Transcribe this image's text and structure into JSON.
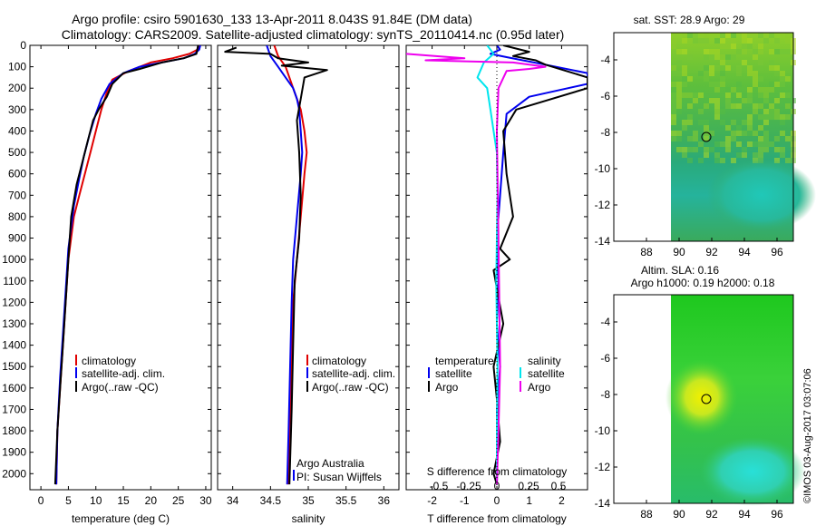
{
  "header": {
    "line1": "Argo profile: csiro 5901630_133 13-Apr-2011 8.043S 91.84E (DM data)",
    "line2": "Climatology: CARS2009. Satellite-adjusted climatology: synTS_20110414.nc (0.95d later)"
  },
  "colors": {
    "climatology": "#e00000",
    "satellite": "#0000ee",
    "argo": "#000000",
    "sat_salinity": "#00e5ee",
    "argo_salinity": "#ee00ee"
  },
  "chart_data": [
    {
      "type": "line",
      "name": "temperature",
      "xlabel": "temperature (deg C)",
      "xlim": [
        -2,
        31
      ],
      "ylim": [
        0,
        2075
      ],
      "yticks": [
        "0",
        "100",
        "200",
        "300",
        "400",
        "500",
        "600",
        "700",
        "800",
        "900",
        "1000",
        "1100",
        "1200",
        "1300",
        "1400",
        "1500",
        "1600",
        "1700",
        "1800",
        "1900",
        "2000"
      ],
      "xticks": [
        "0",
        "5",
        "10",
        "15",
        "20",
        "25",
        "30"
      ],
      "legend": {
        "climatology": "climatology",
        "satellite": "satellite-adj. clim.",
        "argo": "Argo(..raw -QC)"
      },
      "series": [
        {
          "name": "climatology",
          "color": "#e00000",
          "x": [
            29.0,
            28.5,
            27,
            24,
            20,
            16,
            13,
            12,
            11,
            10,
            9,
            8,
            7,
            6,
            5,
            4.5,
            4,
            3.5,
            3.0,
            2.8
          ],
          "y": [
            0,
            20,
            40,
            60,
            80,
            120,
            160,
            220,
            300,
            400,
            500,
            600,
            700,
            800,
            1000,
            1200,
            1400,
            1600,
            1800,
            2050
          ]
        },
        {
          "name": "satellite",
          "color": "#0000ee",
          "x": [
            29.0,
            28.8,
            28.0,
            26,
            22,
            18,
            15,
            12.5,
            11,
            10,
            8.8,
            7.8,
            7,
            6,
            5,
            4.5,
            4,
            3.5,
            3.0,
            2.8
          ],
          "y": [
            0,
            20,
            40,
            60,
            80,
            100,
            130,
            180,
            250,
            320,
            420,
            520,
            620,
            750,
            950,
            1150,
            1350,
            1550,
            1800,
            2050
          ]
        },
        {
          "name": "argo",
          "color": "#000000",
          "x": [
            28.6,
            28.3,
            26,
            22,
            18,
            15,
            13,
            12,
            10.5,
            9.5,
            8.5,
            7.5,
            6.5,
            5.5,
            5,
            4.5,
            4,
            3.5,
            3.0,
            2.6
          ],
          "y": [
            0,
            40,
            60,
            80,
            110,
            130,
            180,
            240,
            300,
            350,
            450,
            550,
            650,
            800,
            1000,
            1200,
            1400,
            1600,
            1800,
            2050
          ]
        }
      ]
    },
    {
      "type": "line",
      "name": "salinity",
      "xlabel": "salinity",
      "xlim": [
        33.8,
        36.2
      ],
      "ylim": [
        0,
        2075
      ],
      "xticks": [
        "34",
        "34.5",
        "35",
        "35.5",
        "36"
      ],
      "legend": {
        "climatology": "climatology",
        "satellite": "satellite-adj. clim.",
        "argo": "Argo(..raw -QC)"
      },
      "caption1": "Argo Australia",
      "caption2": "PI: Susan Wijffels",
      "series": [
        {
          "name": "climatology",
          "color": "#e00000",
          "x": [
            34.55,
            34.6,
            34.7,
            34.75,
            34.8,
            34.85,
            34.9,
            34.95,
            34.98,
            34.95,
            34.9,
            34.85,
            34.8,
            34.78,
            34.75,
            34.73
          ],
          "y": [
            0,
            50,
            100,
            150,
            200,
            250,
            300,
            400,
            500,
            600,
            800,
            1000,
            1200,
            1500,
            1800,
            2050
          ]
        },
        {
          "name": "satellite",
          "color": "#0000ee",
          "x": [
            34.45,
            34.5,
            34.6,
            34.7,
            34.8,
            34.85,
            34.88,
            34.9,
            34.92,
            34.9,
            34.85,
            34.8,
            34.78,
            34.76,
            34.74,
            34.72
          ],
          "y": [
            0,
            50,
            100,
            150,
            200,
            250,
            300,
            400,
            500,
            600,
            800,
            1000,
            1200,
            1500,
            1800,
            2050
          ]
        },
        {
          "name": "argo",
          "color": "#000000",
          "x": [
            34.05,
            33.9,
            34.5,
            34.6,
            35.0,
            34.65,
            35.25,
            34.95,
            34.9,
            34.85,
            34.88,
            34.9,
            34.88,
            34.82,
            34.8,
            34.78,
            34.75
          ],
          "y": [
            10,
            30,
            40,
            60,
            80,
            95,
            115,
            150,
            250,
            350,
            500,
            700,
            900,
            1100,
            1400,
            1700,
            2050
          ]
        }
      ]
    },
    {
      "type": "line",
      "name": "differences",
      "xlabel": "T difference from climatology",
      "xlim": [
        -2.8,
        2.8
      ],
      "ylim": [
        0,
        2075
      ],
      "xticks": [
        "-2",
        "-1",
        "0",
        "1",
        "2"
      ],
      "top_label": "S difference from climatology",
      "top_ticks": [
        "-0.5",
        "-0.25",
        "0",
        "0.25",
        "0.5"
      ],
      "legend": {
        "temp_header": "temperature",
        "sal_header": "salinity",
        "satellite": "satellite",
        "argo": "Argo"
      },
      "series": [
        {
          "name": "T satellite",
          "color": "#0000ee",
          "x": [
            0,
            0.1,
            -0.2,
            0.3,
            0.8,
            1.5,
            2.8,
            2.8,
            1.0,
            0.3,
            0.2,
            0.1,
            0,
            0.05,
            0,
            0.1,
            0,
            0.02,
            0
          ],
          "y": [
            0,
            20,
            40,
            55,
            70,
            90,
            130,
            180,
            240,
            320,
            500,
            700,
            900,
            1100,
            1300,
            1500,
            1700,
            1900,
            2050
          ]
        },
        {
          "name": "T argo",
          "color": "#000000",
          "x": [
            0.2,
            1.0,
            0.5,
            1.2,
            1.5,
            2.8,
            2.8,
            0.6,
            0.2,
            0.3,
            0.5,
            0.1,
            0.4,
            -0.1,
            0.2,
            -0.1,
            0,
            0.1,
            -0.1,
            0
          ],
          "y": [
            0,
            30,
            50,
            70,
            90,
            150,
            200,
            300,
            400,
            600,
            800,
            950,
            1000,
            1050,
            1300,
            1500,
            1650,
            1850,
            2000,
            2050
          ]
        },
        {
          "name": "S satellite",
          "color": "#00e5ee",
          "x": [
            -0.3,
            -0.1,
            -0.4,
            -0.6,
            -0.3,
            -0.2,
            -0.1,
            0,
            0.02,
            0,
            -0.02,
            0,
            0.02,
            0,
            0
          ],
          "y": [
            0,
            40,
            80,
            150,
            200,
            300,
            400,
            500,
            700,
            900,
            1100,
            1300,
            1500,
            1800,
            2050
          ]
        },
        {
          "name": "S argo",
          "color": "#ee00ee",
          "x": [
            -2.8,
            -1.0,
            -2.2,
            0.5,
            1.5,
            1.0,
            0.3,
            0.05,
            0,
            0.05,
            0.1,
            0.05,
            0
          ],
          "y": [
            40,
            60,
            70,
            80,
            100,
            110,
            120,
            200,
            400,
            900,
            1500,
            1800,
            2050
          ]
        }
      ]
    },
    {
      "type": "heatmap",
      "name": "sst_map",
      "title": "sat. SST: 28.9 Argo: 29",
      "xlim": [
        86,
        97
      ],
      "ylim": [
        -14,
        -2.5
      ],
      "xticks": [
        "88",
        "90",
        "92",
        "94",
        "96"
      ],
      "yticks": [
        "-4",
        "-6",
        "-8",
        "-10",
        "-12",
        "-14"
      ],
      "marker": [
        91.84,
        -8.043
      ]
    },
    {
      "type": "heatmap",
      "name": "sla_map",
      "title": "Altim. SLA: 0.16",
      "subtitle": "Argo h1000: 0.19 h2000: 0.18",
      "xlim": [
        86,
        97
      ],
      "ylim": [
        -14,
        -2.5
      ],
      "xticks": [
        "88",
        "90",
        "92",
        "94",
        "96"
      ],
      "yticks": [
        "-4",
        "-6",
        "-8",
        "-10",
        "-12",
        "-14"
      ],
      "marker": [
        91.84,
        -8.043
      ]
    }
  ],
  "footer": {
    "credit": "©IMOS 03-Aug-2017 03:07:06"
  }
}
